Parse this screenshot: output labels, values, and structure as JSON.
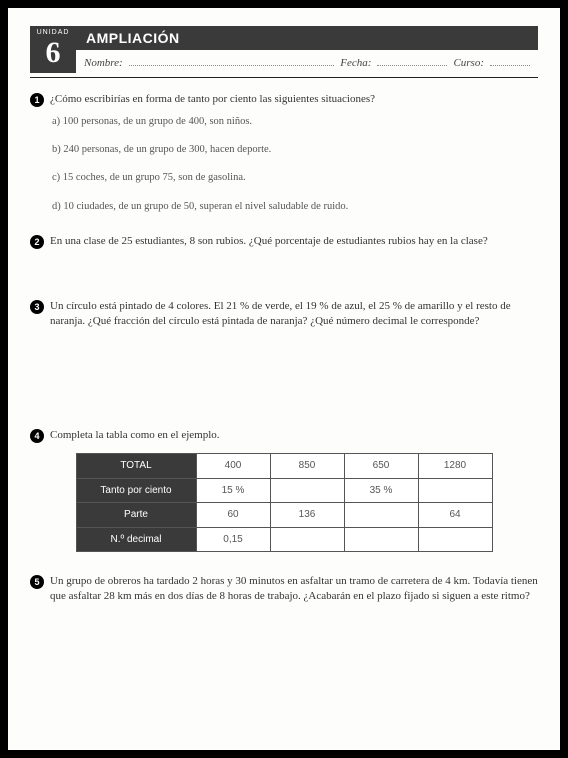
{
  "header": {
    "unidad_label": "UNIDAD",
    "unidad_num": "6",
    "title": "AMPLIACIÓN",
    "nombre_label": "Nombre:",
    "fecha_label": "Fecha:",
    "curso_label": "Curso:"
  },
  "q1": {
    "num": "1",
    "text": "¿Cómo escribirías en forma de tanto por ciento las siguientes situaciones?",
    "a": "a) 100 personas, de un grupo de 400, son niños.",
    "b": "b) 240 personas, de un grupo de 300, hacen deporte.",
    "c": "c) 15 coches, de un grupo 75, son de gasolina.",
    "d": "d) 10 ciudades, de un grupo de 50, superan el nivel saludable de ruido."
  },
  "q2": {
    "num": "2",
    "text": "En una clase de 25 estudiantes, 8 son rubios. ¿Qué porcentaje de estudiantes rubios hay en la clase?"
  },
  "q3": {
    "num": "3",
    "text": "Un círculo está pintado de 4 colores. El 21 % de verde, el 19 % de azul, el 25 % de amarillo y el resto de naranja. ¿Qué fracción del círculo está pintada de naranja? ¿Qué número decimal le corresponde?"
  },
  "q4": {
    "num": "4",
    "text": "Completa la tabla como en el ejemplo.",
    "table": {
      "row_headers": [
        "TOTAL",
        "Tanto por ciento",
        "Parte",
        "N.º decimal"
      ],
      "cols": 4,
      "cells": [
        [
          "400",
          "850",
          "650",
          "1280"
        ],
        [
          "15 %",
          "",
          "35 %",
          ""
        ],
        [
          "60",
          "136",
          "",
          "64"
        ],
        [
          "0,15",
          "",
          "",
          ""
        ]
      ],
      "header_bg": "#3a3a3a",
      "header_color": "#ffffff",
      "border_color": "#555555"
    }
  },
  "q5": {
    "num": "5",
    "text": "Un grupo de obreros ha tardado 2 horas y 30 minutos en asfaltar un tramo de carretera de 4 km. Todavía tienen que asfaltar 28 km más en dos días de 8 horas de trabajo. ¿Acabarán en el plazo fijado si siguen a este ritmo?"
  }
}
